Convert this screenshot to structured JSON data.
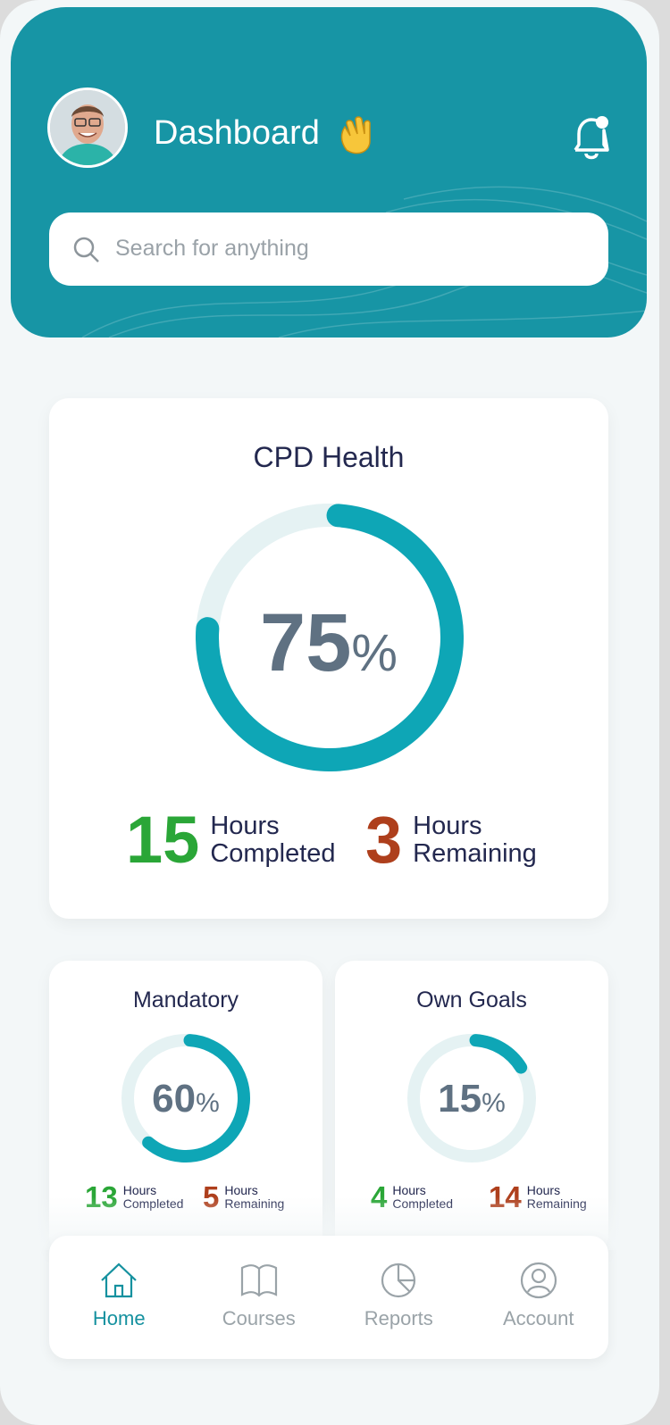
{
  "header": {
    "title": "Dashboard",
    "search_placeholder": "Search for anything"
  },
  "health": {
    "title": "CPD Health",
    "percent": 75,
    "unit": "%",
    "completed": 15,
    "completed_label": "Hours Completed",
    "remaining": 3,
    "remaining_label": "Hours Remaining"
  },
  "cards": [
    {
      "title": "Mandatory",
      "percent": 60,
      "unit": "%",
      "completed": 13,
      "completed_label": "Hours Completed",
      "remaining": 5,
      "remaining_label": "Hours Remaining"
    },
    {
      "title": "Own Goals",
      "percent": 15,
      "unit": "%",
      "completed": 4,
      "completed_label": "Hours Completed",
      "remaining": 14,
      "remaining_label": "Hours Remaining"
    }
  ],
  "nav": [
    {
      "label": "Home",
      "active": true
    },
    {
      "label": "Courses",
      "active": false
    },
    {
      "label": "Reports",
      "active": false
    },
    {
      "label": "Account",
      "active": false
    }
  ]
}
